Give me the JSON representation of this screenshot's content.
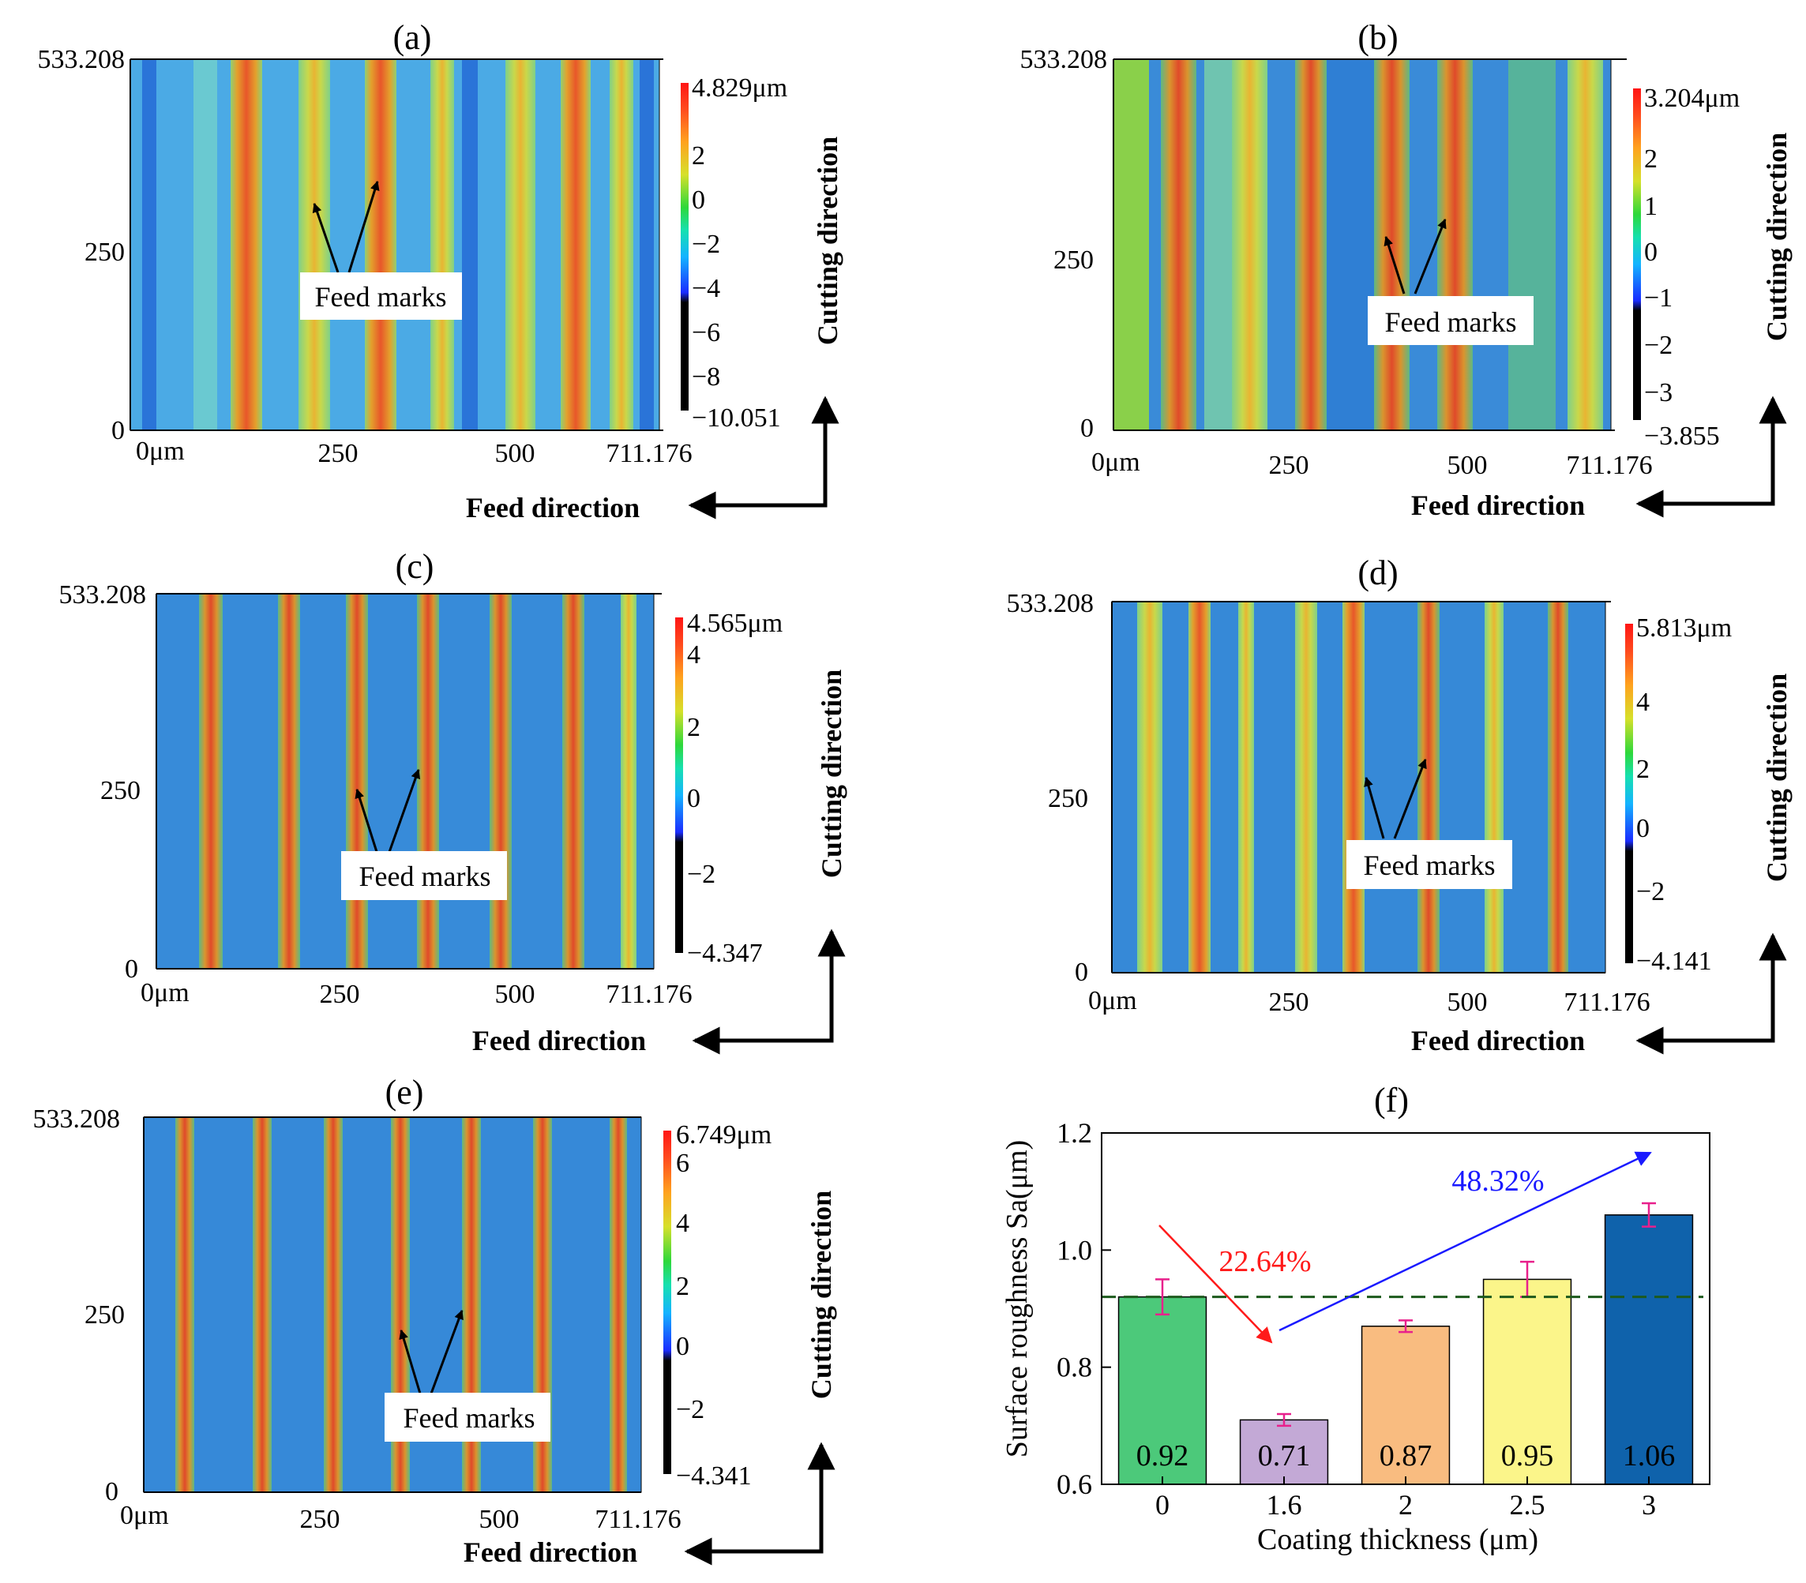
{
  "panels": [
    {
      "id": "a",
      "label": "(a)",
      "y_ticks": [
        "533.208",
        "250",
        "0"
      ],
      "x_ticks": [
        "0μm",
        "250",
        "500",
        "711.176"
      ],
      "colorbar_labels": [
        "4.829μm",
        "2",
        "0",
        "−2",
        "−4",
        "−6",
        "−8",
        "−10.051"
      ],
      "annotation": "Feed marks",
      "cutting_direction": "Cutting direction",
      "feed_direction": "Feed direction"
    },
    {
      "id": "b",
      "label": "(b)",
      "y_ticks": [
        "533.208",
        "250",
        "0"
      ],
      "x_ticks": [
        "0μm",
        "250",
        "500",
        "711.176"
      ],
      "colorbar_labels": [
        "3.204μm",
        "2",
        "1",
        "0",
        "−1",
        "−2",
        "−3",
        "−3.855"
      ],
      "annotation": "Feed marks",
      "cutting_direction": "Cutting direction",
      "feed_direction": "Feed direction"
    },
    {
      "id": "c",
      "label": "(c)",
      "y_ticks": [
        "533.208",
        "250",
        "0"
      ],
      "x_ticks": [
        "0μm",
        "250",
        "500",
        "711.176"
      ],
      "colorbar_labels": [
        "4.565μm",
        "4",
        "2",
        "0",
        "−2",
        "−4.347"
      ],
      "annotation": "Feed marks",
      "cutting_direction": "Cutting direction",
      "feed_direction": "Feed direction"
    },
    {
      "id": "d",
      "label": "(d)",
      "y_ticks": [
        "533.208",
        "250",
        "0"
      ],
      "x_ticks": [
        "0μm",
        "250",
        "500",
        "711.176"
      ],
      "colorbar_labels": [
        "5.813μm",
        "4",
        "2",
        "0",
        "−2",
        "−4.141"
      ],
      "annotation": "Feed marks",
      "cutting_direction": "Cutting direction",
      "feed_direction": "Feed direction"
    },
    {
      "id": "e",
      "label": "(e)",
      "y_ticks": [
        "533.208",
        "250",
        "0"
      ],
      "x_ticks": [
        "0μm",
        "250",
        "500",
        "711.176"
      ],
      "colorbar_labels": [
        "6.749μm",
        "6",
        "4",
        "2",
        "0",
        "−2",
        "−4.341"
      ],
      "annotation": "Feed marks",
      "cutting_direction": "Cutting direction",
      "feed_direction": "Feed direction"
    }
  ],
  "chart_data": {
    "type": "bar",
    "title": "(f)",
    "xlabel": "Coating thickness (μm)",
    "ylabel": "Surface roughness Sa(μm)",
    "categories": [
      "0",
      "1.6",
      "2",
      "2.5",
      "3"
    ],
    "values": [
      0.92,
      0.71,
      0.87,
      0.95,
      1.06
    ],
    "value_labels": [
      "0.92",
      "0.71",
      "0.87",
      "0.95",
      "1.06"
    ],
    "errors": [
      0.03,
      0.01,
      0.01,
      0.03,
      0.02
    ],
    "bar_colors": [
      "#4cc97a",
      "#c3a9d6",
      "#f9bc80",
      "#fbf58a",
      "#0f62ab"
    ],
    "error_color": "#e8208c",
    "ylim": [
      0.6,
      1.2
    ],
    "yticks": [
      "0.6",
      "0.8",
      "1.0",
      "1.2"
    ],
    "reference_line": 0.92,
    "reference_line_color": "#1d5a1d",
    "annotations": [
      {
        "text": "22.64%",
        "color": "#ff1a1a"
      },
      {
        "text": "48.32%",
        "color": "#1a1aff"
      }
    ]
  }
}
